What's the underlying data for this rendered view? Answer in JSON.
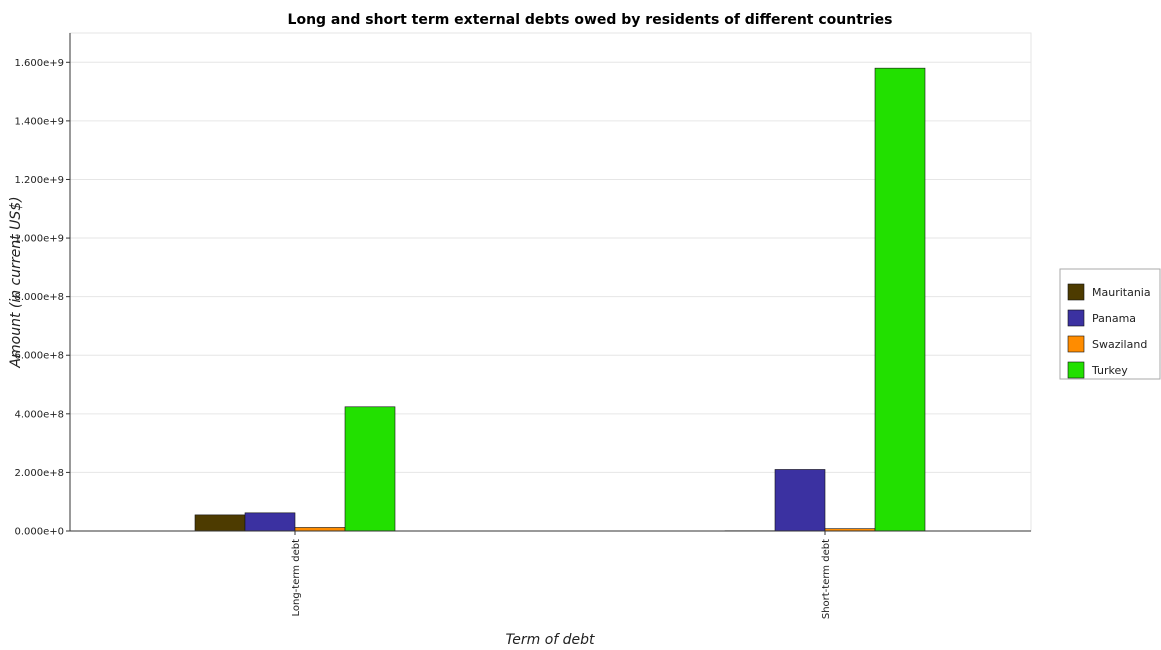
{
  "chart_data": {
    "type": "bar",
    "title": "Long and short term external debts owed by residents of different countries",
    "xlabel": "Term of debt",
    "ylabel": "Amount (in current US$)",
    "categories": [
      "Long-term debt",
      "Short-term debt"
    ],
    "series": [
      {
        "name": "Mauritania",
        "color": "#4d3b00",
        "values": [
          55000000,
          1000000
        ]
      },
      {
        "name": "Panama",
        "color": "#3b31a1",
        "values": [
          62000000,
          210000000
        ]
      },
      {
        "name": "Swaziland",
        "color": "#ff8c00",
        "values": [
          12000000,
          8000000
        ]
      },
      {
        "name": "Turkey",
        "color": "#22e000",
        "values": [
          424000000,
          1580000000
        ]
      }
    ],
    "yticks": [
      "0.000e+0",
      "2.000e+8",
      "4.000e+8",
      "6.000e+8",
      "8.000e+8",
      "1.000e+9",
      "1.200e+9",
      "1.400e+9",
      "1.600e+9"
    ],
    "ylim": [
      0,
      1700000000
    ],
    "legend_position": "right",
    "grid": true
  }
}
